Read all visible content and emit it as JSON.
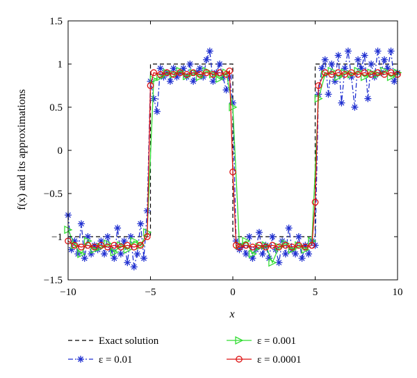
{
  "chart_data": {
    "type": "line",
    "xlabel": "x",
    "ylabel": "f(x) and its approximations",
    "xlim": [
      -10,
      10
    ],
    "ylim": [
      -1.5,
      1.5
    ],
    "x_ticks": [
      "-10",
      "-5",
      "0",
      "5",
      "10"
    ],
    "y_ticks": [
      "1.5",
      "1",
      "0.5",
      "0",
      "-0.5",
      "-1",
      "-1.5"
    ],
    "grid": false,
    "legend_position": "bottom, two columns below the plot",
    "exact": {
      "name": "Exact solution",
      "color": "#000000",
      "style": "dashed",
      "x": [
        -10,
        -5,
        -5,
        0,
        0,
        5,
        5,
        10
      ],
      "y": [
        -1,
        -1,
        1,
        1,
        -1,
        -1,
        1,
        1
      ]
    },
    "series": [
      {
        "name": "ε = 0.01",
        "color": "#1f2fd0",
        "style": "dashdot",
        "marker": "asterisk",
        "x": [
          -10.0,
          -9.8,
          -9.6,
          -9.4,
          -9.2,
          -9.0,
          -8.8,
          -8.6,
          -8.4,
          -8.2,
          -8.0,
          -7.8,
          -7.6,
          -7.4,
          -7.2,
          -7.0,
          -6.8,
          -6.6,
          -6.4,
          -6.2,
          -6.0,
          -5.8,
          -5.6,
          -5.4,
          -5.2,
          -5.0,
          -4.8,
          -4.6,
          -4.4,
          -4.2,
          -4.0,
          -3.8,
          -3.6,
          -3.4,
          -3.2,
          -3.0,
          -2.8,
          -2.6,
          -2.4,
          -2.2,
          -2.0,
          -1.8,
          -1.6,
          -1.4,
          -1.2,
          -1.0,
          -0.8,
          -0.6,
          -0.4,
          -0.2,
          0.0,
          0.2,
          0.4,
          0.6,
          0.8,
          1.0,
          1.2,
          1.4,
          1.6,
          1.8,
          2.0,
          2.2,
          2.4,
          2.6,
          2.8,
          3.0,
          3.2,
          3.4,
          3.6,
          3.8,
          4.0,
          4.2,
          4.4,
          4.6,
          4.8,
          5.0,
          5.2,
          5.4,
          5.6,
          5.8,
          6.0,
          6.2,
          6.4,
          6.6,
          6.8,
          7.0,
          7.2,
          7.4,
          7.6,
          7.8,
          8.0,
          8.2,
          8.4,
          8.6,
          8.8,
          9.0,
          9.2,
          9.4,
          9.6,
          9.8,
          10.0
        ],
        "y": [
          -0.75,
          -1.15,
          -1.05,
          -1.2,
          -0.85,
          -1.25,
          -1.0,
          -1.2,
          -1.1,
          -1.15,
          -1.05,
          -1.2,
          -1.0,
          -1.15,
          -1.25,
          -0.9,
          -1.2,
          -1.05,
          -1.3,
          -1.0,
          -1.35,
          -1.2,
          -0.85,
          -1.25,
          -0.7,
          0.8,
          0.6,
          0.45,
          0.95,
          0.85,
          0.9,
          0.8,
          0.95,
          0.85,
          0.9,
          0.95,
          0.85,
          1.0,
          0.8,
          0.9,
          0.95,
          0.85,
          1.05,
          1.15,
          0.8,
          0.9,
          1.0,
          0.85,
          0.7,
          0.85,
          0.55,
          -1.05,
          -1.15,
          -1.1,
          -1.2,
          -1.0,
          -1.25,
          -1.15,
          -0.95,
          -1.2,
          -1.1,
          -1.25,
          -1.0,
          -1.15,
          -1.3,
          -1.05,
          -1.2,
          -0.9,
          -1.15,
          -1.2,
          -1.0,
          -1.25,
          -1.1,
          -1.2,
          -1.05,
          -1.1,
          0.65,
          0.95,
          1.05,
          0.65,
          1.0,
          0.8,
          1.1,
          0.55,
          0.95,
          1.15,
          0.85,
          0.5,
          1.05,
          0.95,
          1.1,
          0.6,
          1.0,
          0.85,
          1.15,
          0.9,
          1.05,
          0.95,
          1.15,
          0.8,
          0.9
        ]
      },
      {
        "name": "ε = 0.001",
        "color": "#33dd33",
        "style": "solid",
        "marker": "triangle-right",
        "x": [
          -10.0,
          -9.6,
          -9.2,
          -8.8,
          -8.4,
          -8.0,
          -7.6,
          -7.2,
          -6.8,
          -6.4,
          -6.0,
          -5.6,
          -5.2,
          -4.8,
          -4.4,
          -4.0,
          -3.6,
          -3.2,
          -2.8,
          -2.4,
          -2.0,
          -1.6,
          -1.2,
          -0.8,
          -0.4,
          0.0,
          0.4,
          0.8,
          1.2,
          1.6,
          2.0,
          2.4,
          2.8,
          3.2,
          3.6,
          4.0,
          4.4,
          4.8,
          5.2,
          5.6,
          6.0,
          6.4,
          6.8,
          7.2,
          7.6,
          8.0,
          8.4,
          8.8,
          9.2,
          9.6,
          10.0
        ],
        "y": [
          -0.92,
          -1.1,
          -1.2,
          -1.05,
          -1.15,
          -1.12,
          -1.08,
          -1.18,
          -1.1,
          -1.15,
          -1.05,
          -1.1,
          -0.95,
          0.82,
          0.85,
          0.9,
          0.88,
          0.92,
          0.86,
          0.9,
          0.85,
          0.92,
          0.88,
          0.83,
          0.9,
          0.5,
          -1.1,
          -1.05,
          -1.2,
          -1.12,
          -1.1,
          -1.3,
          -1.12,
          -1.08,
          -1.15,
          -1.1,
          -1.15,
          -1.05,
          0.6,
          0.88,
          0.92,
          0.85,
          0.9,
          0.88,
          0.92,
          0.85,
          0.9,
          0.88,
          0.92,
          0.85,
          0.9
        ]
      },
      {
        "name": "ε = 0.0001",
        "color": "#dd1111",
        "style": "solid",
        "marker": "circle",
        "x": [
          -10.0,
          -9.6,
          -9.2,
          -8.8,
          -8.4,
          -8.0,
          -7.6,
          -7.2,
          -6.8,
          -6.4,
          -6.0,
          -5.6,
          -5.2,
          -5.0,
          -4.8,
          -4.4,
          -4.0,
          -3.6,
          -3.2,
          -2.8,
          -2.4,
          -2.0,
          -1.6,
          -1.2,
          -0.8,
          -0.4,
          -0.2,
          0.0,
          0.2,
          0.4,
          0.8,
          1.2,
          1.6,
          2.0,
          2.4,
          2.8,
          3.2,
          3.6,
          4.0,
          4.4,
          4.8,
          5.0,
          5.2,
          5.6,
          6.0,
          6.4,
          6.8,
          7.2,
          7.6,
          8.0,
          8.4,
          8.8,
          9.2,
          9.6,
          10.0
        ],
        "y": [
          -1.05,
          -1.1,
          -1.12,
          -1.1,
          -1.12,
          -1.1,
          -1.12,
          -1.1,
          -1.12,
          -1.1,
          -1.12,
          -1.1,
          -1.0,
          0.75,
          0.9,
          0.88,
          0.9,
          0.88,
          0.9,
          0.88,
          0.9,
          0.88,
          0.9,
          0.88,
          0.9,
          0.88,
          0.92,
          -0.25,
          -1.1,
          -1.12,
          -1.1,
          -1.12,
          -1.1,
          -1.12,
          -1.1,
          -1.12,
          -1.1,
          -1.12,
          -1.1,
          -1.12,
          -1.1,
          -0.6,
          0.75,
          0.9,
          0.88,
          0.9,
          0.88,
          0.9,
          0.88,
          0.9,
          0.88,
          0.9,
          0.88,
          0.9,
          0.88
        ]
      }
    ]
  }
}
